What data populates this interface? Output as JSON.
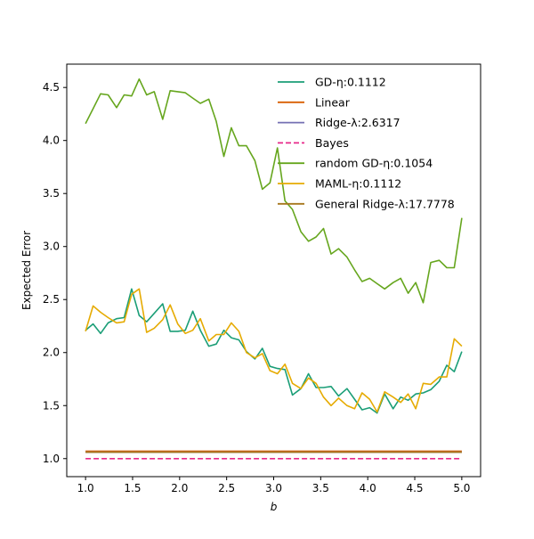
{
  "chart_data": {
    "type": "line",
    "title": "",
    "xlabel": "b",
    "ylabel": "Expected Error",
    "xlim": [
      0.8,
      5.2
    ],
    "ylim": [
      0.83,
      4.72
    ],
    "xticks": [
      "1.0",
      "1.5",
      "2.0",
      "2.5",
      "3.0",
      "3.5",
      "4.0",
      "4.5",
      "5.0"
    ],
    "yticks": [
      "1.0",
      "1.5",
      "2.0",
      "2.5",
      "3.0",
      "3.5",
      "4.0",
      "4.5"
    ],
    "grid": false,
    "legend_position": "top-right",
    "x": [
      1.0,
      1.08,
      1.16,
      1.24,
      1.33,
      1.41,
      1.49,
      1.57,
      1.65,
      1.73,
      1.82,
      1.9,
      1.98,
      2.06,
      2.14,
      2.22,
      2.31,
      2.39,
      2.47,
      2.55,
      2.63,
      2.71,
      2.8,
      2.88,
      2.96,
      3.04,
      3.12,
      3.2,
      3.29,
      3.37,
      3.45,
      3.53,
      3.61,
      3.69,
      3.78,
      3.86,
      3.94,
      4.02,
      4.1,
      4.18,
      4.27,
      4.35,
      4.43,
      4.51,
      4.59,
      4.67,
      4.76,
      4.84,
      4.92,
      5.0
    ],
    "series": [
      {
        "name": "GD-η:0.1112",
        "color": "#1b9e77",
        "dash": "solid",
        "values": [
          2.21,
          2.27,
          2.18,
          2.28,
          2.32,
          2.33,
          2.6,
          2.35,
          2.29,
          2.37,
          2.46,
          2.2,
          2.2,
          2.21,
          2.39,
          2.21,
          2.06,
          2.08,
          2.21,
          2.14,
          2.12,
          2.01,
          1.94,
          2.04,
          1.87,
          1.85,
          1.84,
          1.6,
          1.66,
          1.8,
          1.67,
          1.67,
          1.68,
          1.59,
          1.66,
          1.56,
          1.46,
          1.48,
          1.43,
          1.61,
          1.47,
          1.58,
          1.55,
          1.61,
          1.62,
          1.65,
          1.73,
          1.88,
          1.82,
          2.01
        ]
      },
      {
        "name": "Linear",
        "color": "#d95f02",
        "dash": "solid",
        "values": [
          1.07,
          1.07,
          1.07,
          1.07,
          1.07,
          1.07,
          1.07,
          1.07,
          1.07,
          1.07,
          1.07,
          1.07,
          1.07,
          1.07,
          1.07,
          1.07,
          1.07,
          1.07,
          1.07,
          1.07,
          1.07,
          1.07,
          1.07,
          1.07,
          1.07,
          1.07,
          1.07,
          1.07,
          1.07,
          1.07,
          1.07,
          1.07,
          1.07,
          1.07,
          1.07,
          1.07,
          1.07,
          1.07,
          1.07,
          1.07,
          1.07,
          1.07,
          1.07,
          1.07,
          1.07,
          1.07,
          1.07,
          1.07,
          1.07,
          1.07
        ]
      },
      {
        "name": "Ridge-λ:2.6317",
        "color": "#7570b3",
        "dash": "solid",
        "values": [
          1.06,
          1.06,
          1.06,
          1.06,
          1.06,
          1.06,
          1.06,
          1.06,
          1.06,
          1.06,
          1.06,
          1.06,
          1.06,
          1.06,
          1.06,
          1.06,
          1.06,
          1.06,
          1.06,
          1.06,
          1.06,
          1.06,
          1.06,
          1.06,
          1.06,
          1.06,
          1.06,
          1.06,
          1.06,
          1.06,
          1.06,
          1.06,
          1.06,
          1.06,
          1.06,
          1.06,
          1.06,
          1.06,
          1.06,
          1.06,
          1.06,
          1.06,
          1.06,
          1.06,
          1.06,
          1.06,
          1.06,
          1.06,
          1.06,
          1.06
        ]
      },
      {
        "name": "Bayes",
        "color": "#e7298a",
        "dash": "dashed",
        "values": [
          1.0,
          1.0,
          1.0,
          1.0,
          1.0,
          1.0,
          1.0,
          1.0,
          1.0,
          1.0,
          1.0,
          1.0,
          1.0,
          1.0,
          1.0,
          1.0,
          1.0,
          1.0,
          1.0,
          1.0,
          1.0,
          1.0,
          1.0,
          1.0,
          1.0,
          1.0,
          1.0,
          1.0,
          1.0,
          1.0,
          1.0,
          1.0,
          1.0,
          1.0,
          1.0,
          1.0,
          1.0,
          1.0,
          1.0,
          1.0,
          1.0,
          1.0,
          1.0,
          1.0,
          1.0,
          1.0,
          1.0,
          1.0,
          1.0,
          1.0
        ]
      },
      {
        "name": "random GD-η:0.1054",
        "color": "#66a61e",
        "dash": "solid",
        "values": [
          4.16,
          4.3,
          4.44,
          4.43,
          4.31,
          4.43,
          4.42,
          4.58,
          4.43,
          4.46,
          4.2,
          4.47,
          4.46,
          4.45,
          4.4,
          4.35,
          4.39,
          4.18,
          3.85,
          4.12,
          3.95,
          3.95,
          3.81,
          3.54,
          3.6,
          3.93,
          3.43,
          3.35,
          3.14,
          3.05,
          3.09,
          3.17,
          2.93,
          2.98,
          2.9,
          2.78,
          2.67,
          2.7,
          2.65,
          2.6,
          2.66,
          2.7,
          2.56,
          2.66,
          2.47,
          2.85,
          2.87,
          2.8,
          2.8,
          3.27
        ]
      },
      {
        "name": "MAML-η:0.1112",
        "color": "#e6ab02",
        "dash": "solid",
        "values": [
          2.2,
          2.44,
          2.38,
          2.33,
          2.28,
          2.29,
          2.55,
          2.6,
          2.19,
          2.23,
          2.31,
          2.45,
          2.27,
          2.18,
          2.21,
          2.32,
          2.11,
          2.17,
          2.17,
          2.28,
          2.2,
          2.0,
          1.95,
          1.99,
          1.83,
          1.8,
          1.89,
          1.71,
          1.66,
          1.76,
          1.71,
          1.58,
          1.5,
          1.57,
          1.5,
          1.47,
          1.62,
          1.56,
          1.44,
          1.63,
          1.58,
          1.53,
          1.61,
          1.47,
          1.71,
          1.7,
          1.77,
          1.77,
          2.13,
          2.06
        ]
      },
      {
        "name": "General Ridge-λ:17.7778",
        "color": "#a6761d",
        "dash": "solid",
        "values": [
          1.06,
          1.06,
          1.06,
          1.06,
          1.06,
          1.06,
          1.06,
          1.06,
          1.06,
          1.06,
          1.06,
          1.06,
          1.06,
          1.06,
          1.06,
          1.06,
          1.06,
          1.06,
          1.06,
          1.06,
          1.06,
          1.06,
          1.06,
          1.06,
          1.06,
          1.06,
          1.06,
          1.06,
          1.06,
          1.06,
          1.06,
          1.06,
          1.06,
          1.06,
          1.06,
          1.06,
          1.06,
          1.06,
          1.06,
          1.06,
          1.06,
          1.06,
          1.06,
          1.06,
          1.06,
          1.06,
          1.06,
          1.06,
          1.06,
          1.06
        ]
      }
    ]
  }
}
